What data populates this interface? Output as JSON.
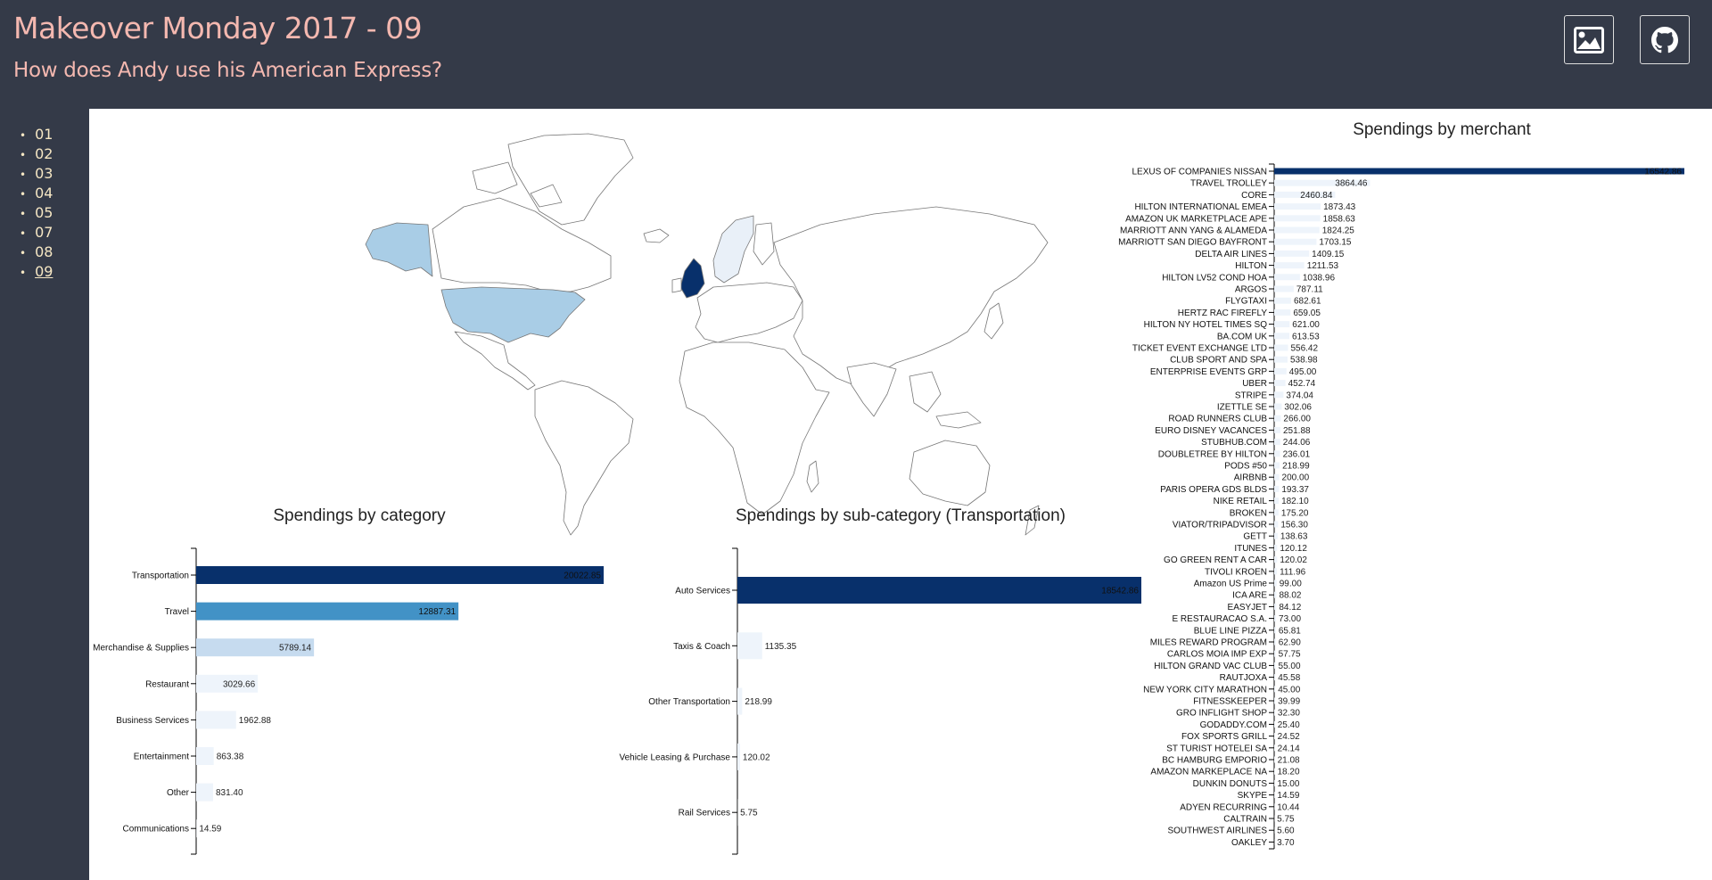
{
  "header": {
    "title": "Makeover Monday 2017 - 09",
    "subtitle": "How does Andy use his American Express?",
    "image_button_icon": "image-icon",
    "github_button_icon": "github-icon"
  },
  "sidebar": {
    "items": [
      {
        "label": "01",
        "active": false
      },
      {
        "label": "02",
        "active": false
      },
      {
        "label": "03",
        "active": false
      },
      {
        "label": "04",
        "active": false
      },
      {
        "label": "05",
        "active": false
      },
      {
        "label": "07",
        "active": false
      },
      {
        "label": "08",
        "active": false
      },
      {
        "label": "09",
        "active": true
      }
    ]
  },
  "colors": {
    "dark": "#08306b",
    "mid": "#4292c6",
    "light": "#c6dbef",
    "pale": "#eef4fb",
    "map_us": "#a9cde6"
  },
  "chart_data": [
    {
      "type": "map",
      "title": "",
      "highlighted_countries": [
        "United States",
        "United Kingdom"
      ]
    },
    {
      "type": "bar",
      "orientation": "horizontal",
      "title": "Spendings by category",
      "categories": [
        "Transportation",
        "Travel",
        "Merchandise & Supplies",
        "Restaurant",
        "Business Services",
        "Entertainment",
        "Other",
        "Communications"
      ],
      "values": [
        20022.85,
        12887.31,
        5789.14,
        3029.66,
        1962.88,
        863.38,
        831.4,
        14.59
      ],
      "labels": [
        "20022.85",
        "12887.31",
        "5789.14",
        "3029.66",
        "1962.88",
        "863.38",
        "831.40",
        "14.59"
      ]
    },
    {
      "type": "bar",
      "orientation": "horizontal",
      "title": "Spendings by sub-category (Transportation)",
      "categories": [
        "Auto Services",
        "Taxis & Coach",
        "Other Transportation",
        "Vehicle Leasing & Purchase",
        "Rail Services"
      ],
      "values": [
        18542.86,
        1135.35,
        218.99,
        120.02,
        5.75
      ],
      "labels": [
        "18542.86",
        "1135.35",
        "218.99",
        "120.02",
        "5.75"
      ]
    },
    {
      "type": "bar",
      "orientation": "horizontal",
      "title": "Spendings by merchant",
      "categories": [
        "LEXUS OF COMPANIES NISSAN",
        "TRAVEL TROLLEY",
        "CORE",
        "HILTON INTERNATIONAL EMEA",
        "AMAZON UK MARKETPLACE APE",
        "MARRIOTT ANN YANG & ALAMEDA",
        "MARRIOTT SAN DIEGO BAYFRONT",
        "DELTA AIR LINES",
        "HILTON",
        "HILTON LV52 COND HOA",
        "ARGOS",
        "FLYGTAXI",
        "HERTZ RAC FIREFLY",
        "HILTON NY HOTEL TIMES SQ",
        "BA.COM UK",
        "TICKET EVENT EXCHANGE LTD",
        "CLUB SPORT AND SPA",
        "ENTERPRISE EVENTS GRP",
        "UBER",
        "STRIPE",
        "IZETTLE SE",
        "ROAD RUNNERS CLUB",
        "EURO DISNEY VACANCES",
        "STUBHUB.COM",
        "DOUBLETREE BY HILTON",
        "PODS #50",
        "AIRBNB",
        "PARIS OPERA GDS BLDS",
        "NIKE RETAIL",
        "BROKEN",
        "VIATOR/TRIPADVISOR",
        "GETT",
        "ITUNES",
        "GO GREEN RENT A CAR",
        "TIVOLI KROEN",
        "Amazon US Prime",
        "ICA ARE",
        "EASYJET",
        "E RESTAURACAO S.A.",
        "BLUE LINE PIZZA",
        "MILES REWARD PROGRAM",
        "CARLOS MOIA IMP EXP",
        "HILTON GRAND VAC CLUB",
        "RAUTJOXA",
        "NEW YORK CITY MARATHON",
        "FITNESSKEEPER",
        "GRO INFLIGHT SHOP",
        "GODADDY.COM",
        "FOX SPORTS GRILL",
        "ST TURIST HOTELEI SA",
        "BC HAMBURG EMPORIO",
        "AMAZON MARKEPLACE NA",
        "DUNKIN DONUTS",
        "SKYPE",
        "ADYEN RECURRING",
        "CALTRAIN",
        "SOUTHWEST AIRLINES",
        "OAKLEY"
      ],
      "values": [
        16542.86,
        3864.46,
        2460.84,
        1873.43,
        1858.63,
        1824.25,
        1703.15,
        1409.15,
        1211.53,
        1038.96,
        787.11,
        682.61,
        659.05,
        621.0,
        613.53,
        556.42,
        538.98,
        495.0,
        452.74,
        374.04,
        302.06,
        266.0,
        251.88,
        244.06,
        236.01,
        218.99,
        200.0,
        193.37,
        182.1,
        175.2,
        156.3,
        138.63,
        120.12,
        120.02,
        111.96,
        99.0,
        88.02,
        84.12,
        73.0,
        65.81,
        62.9,
        57.75,
        55.0,
        45.58,
        45.0,
        39.99,
        32.3,
        25.4,
        24.52,
        24.14,
        21.08,
        18.2,
        15.0,
        14.59,
        10.44,
        5.75,
        5.6,
        3.7
      ],
      "labels": [
        "16542.86",
        "3864.46",
        "2460.84",
        "1873.43",
        "1858.63",
        "1824.25",
        "1703.15",
        "1409.15",
        "1211.53",
        "1038.96",
        "787.11",
        "682.61",
        "659.05",
        "621.00",
        "613.53",
        "556.42",
        "538.98",
        "495.00",
        "452.74",
        "374.04",
        "302.06",
        "266.00",
        "251.88",
        "244.06",
        "236.01",
        "218.99",
        "200.00",
        "193.37",
        "182.10",
        "175.20",
        "156.30",
        "138.63",
        "120.12",
        "120.02",
        "111.96",
        "99.00",
        "88.02",
        "84.12",
        "73.00",
        "65.81",
        "62.90",
        "57.75",
        "55.00",
        "45.58",
        "45.00",
        "39.99",
        "32.30",
        "25.40",
        "24.52",
        "24.14",
        "21.08",
        "18.20",
        "15.00",
        "14.59",
        "10.44",
        "5.75",
        "5.60",
        "3.70"
      ]
    }
  ]
}
